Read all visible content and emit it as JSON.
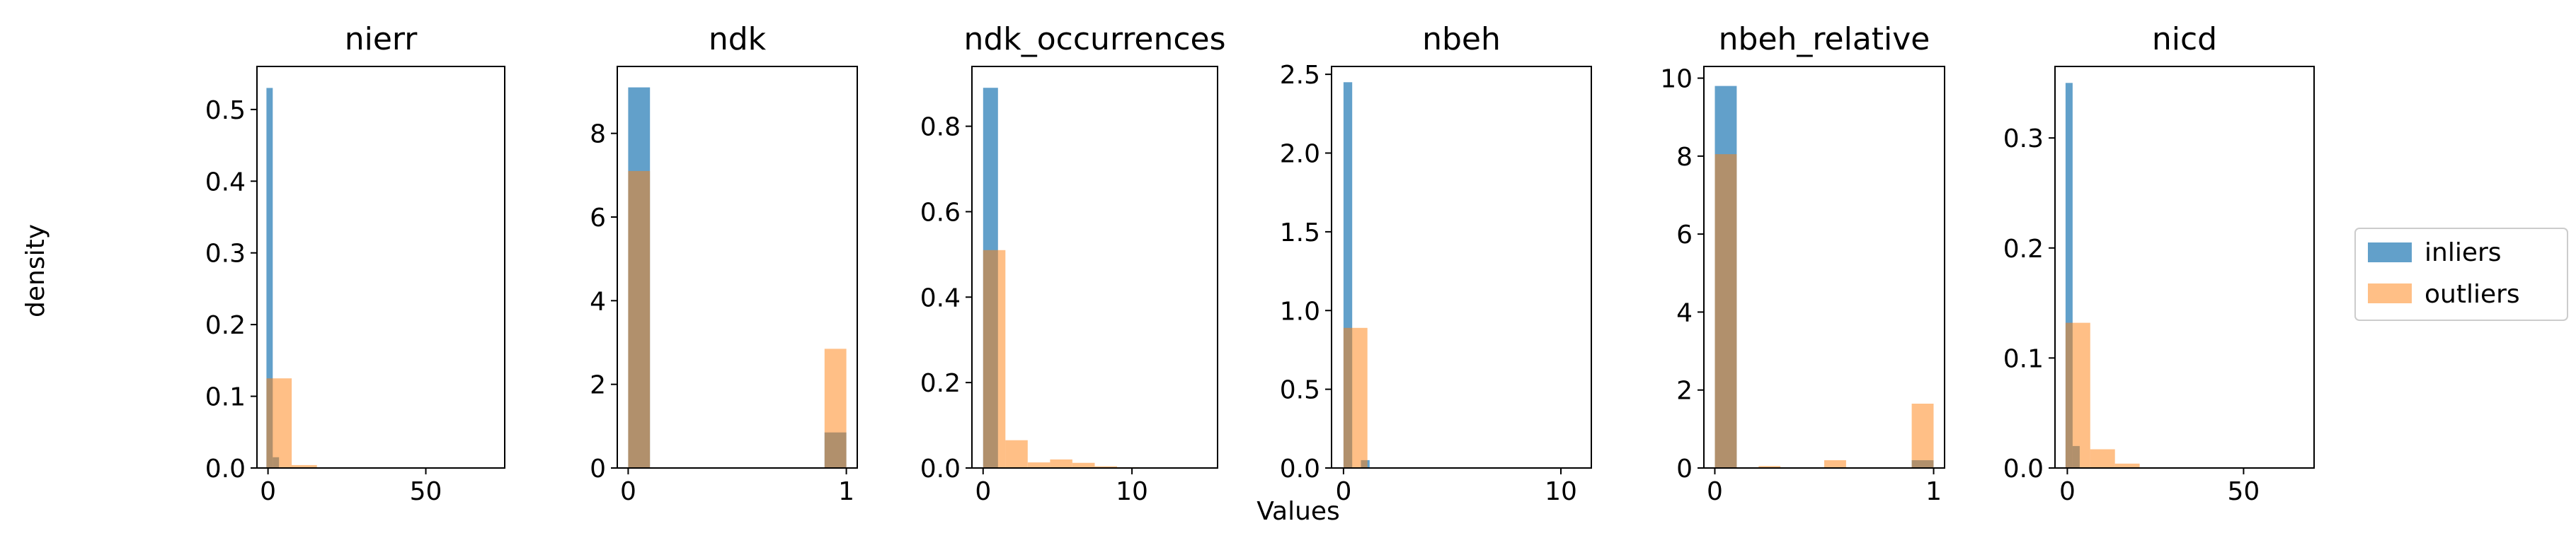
{
  "figure": {
    "ylabel": "density",
    "xlabel": "Values"
  },
  "chart_data": [
    {
      "type": "bar",
      "title": "nierr",
      "xlim": [
        -3.5,
        75
      ],
      "ylim": [
        0,
        0.56
      ],
      "xticks": [
        0,
        50
      ],
      "yticks": [
        0.0,
        0.1,
        0.2,
        0.3,
        0.4,
        0.5
      ],
      "ytick_labels": [
        "0.0",
        "0.1",
        "0.2",
        "0.3",
        "0.4",
        "0.5"
      ],
      "series": [
        {
          "name": "inliers",
          "bins": [
            [
              -0.5,
              1.5,
              0.53
            ],
            [
              1.5,
              3.5,
              0.015
            ]
          ]
        },
        {
          "name": "outliers",
          "bins": [
            [
              -0.5,
              7.5,
              0.125
            ],
            [
              7.5,
              15.5,
              0.004
            ]
          ]
        }
      ]
    },
    {
      "type": "bar",
      "title": "ndk",
      "xlim": [
        -0.05,
        1.05
      ],
      "ylim": [
        0,
        9.6
      ],
      "xticks": [
        0,
        1
      ],
      "yticks": [
        0,
        2,
        4,
        6,
        8
      ],
      "ytick_labels": [
        "0",
        "2",
        "4",
        "6",
        "8"
      ],
      "series": [
        {
          "name": "inliers",
          "bins": [
            [
              0.0,
              0.1,
              9.1
            ],
            [
              0.9,
              1.0,
              0.85
            ]
          ]
        },
        {
          "name": "outliers",
          "bins": [
            [
              0.0,
              0.1,
              7.1
            ],
            [
              0.9,
              1.0,
              2.85
            ]
          ]
        }
      ]
    },
    {
      "type": "bar",
      "title": "ndk_occurrences",
      "xlim": [
        -0.75,
        15.75
      ],
      "ylim": [
        0,
        0.94
      ],
      "xticks": [
        0,
        10
      ],
      "yticks": [
        0.0,
        0.2,
        0.4,
        0.6,
        0.8
      ],
      "ytick_labels": [
        "0.0",
        "0.2",
        "0.4",
        "0.6",
        "0.8"
      ],
      "series": [
        {
          "name": "inliers",
          "bins": [
            [
              0.0,
              1.0,
              0.89
            ],
            [
              1.0,
              2.0,
              0.0
            ]
          ]
        },
        {
          "name": "outliers",
          "bins": [
            [
              0.0,
              1.5,
              0.51
            ],
            [
              1.5,
              3.0,
              0.065
            ],
            [
              3.0,
              4.5,
              0.013
            ],
            [
              4.5,
              6.0,
              0.02
            ],
            [
              6.0,
              7.5,
              0.012
            ],
            [
              7.5,
              9.0,
              0.004
            ],
            [
              9.0,
              10.5,
              0.002
            ],
            [
              10.5,
              12.0,
              0.001
            ]
          ]
        }
      ]
    },
    {
      "type": "bar",
      "title": "nbeh",
      "xlim": [
        -0.55,
        11.4
      ],
      "ylim": [
        0,
        2.55
      ],
      "xticks": [
        0,
        10
      ],
      "yticks": [
        0.0,
        0.5,
        1.0,
        1.5,
        2.0,
        2.5
      ],
      "ytick_labels": [
        "0.0",
        "0.5",
        "1.0",
        "1.5",
        "2.0",
        "2.5"
      ],
      "series": [
        {
          "name": "inliers",
          "bins": [
            [
              0.0,
              0.4,
              2.45
            ],
            [
              0.8,
              1.2,
              0.05
            ]
          ]
        },
        {
          "name": "outliers",
          "bins": [
            [
              0.0,
              1.1,
              0.89
            ]
          ]
        }
      ]
    },
    {
      "type": "bar",
      "title": "nbeh_relative",
      "xlim": [
        -0.05,
        1.05
      ],
      "ylim": [
        0,
        10.3
      ],
      "xticks": [
        0,
        1
      ],
      "yticks": [
        0,
        2,
        4,
        6,
        8,
        10
      ],
      "ytick_labels": [
        "0",
        "2",
        "4",
        "6",
        "8",
        "10"
      ],
      "series": [
        {
          "name": "inliers",
          "bins": [
            [
              0.0,
              0.1,
              9.8
            ],
            [
              0.9,
              1.0,
              0.2
            ]
          ]
        },
        {
          "name": "outliers",
          "bins": [
            [
              0.0,
              0.1,
              8.05
            ],
            [
              0.2,
              0.3,
              0.05
            ],
            [
              0.5,
              0.6,
              0.2
            ],
            [
              0.9,
              1.0,
              1.65
            ]
          ]
        }
      ]
    },
    {
      "type": "bar",
      "title": "nicd",
      "xlim": [
        -3.5,
        70
      ],
      "ylim": [
        0,
        0.365
      ],
      "xticks": [
        0,
        50
      ],
      "yticks": [
        0.0,
        0.1,
        0.2,
        0.3
      ],
      "ytick_labels": [
        "0.0",
        "0.1",
        "0.2",
        "0.3"
      ],
      "series": [
        {
          "name": "inliers",
          "bins": [
            [
              -0.5,
              1.5,
              0.35
            ],
            [
              1.5,
              3.5,
              0.02
            ]
          ]
        },
        {
          "name": "outliers",
          "bins": [
            [
              -0.5,
              6.5,
              0.132
            ],
            [
              6.5,
              13.5,
              0.017
            ],
            [
              13.5,
              20.5,
              0.004
            ]
          ]
        }
      ]
    }
  ],
  "legend": {
    "placement": "right",
    "items": [
      {
        "label": "inliers",
        "color": "#1f77b4",
        "alpha": 0.7
      },
      {
        "label": "outliers",
        "color": "#ff7f0e",
        "alpha": 0.5
      }
    ]
  }
}
